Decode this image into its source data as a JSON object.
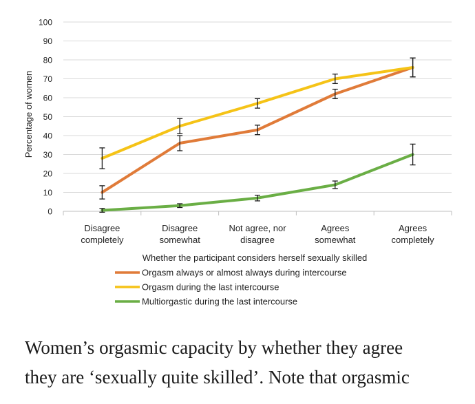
{
  "chart_data": {
    "type": "line",
    "title": "",
    "ylabel": "Percentage of women",
    "xlabel": "Whether the participant considers herself sexually skilled",
    "ylim": [
      0,
      100
    ],
    "yticks": [
      0,
      10,
      20,
      30,
      40,
      50,
      60,
      70,
      80,
      90,
      100
    ],
    "grid": true,
    "legend_position": "bottom",
    "categories": [
      [
        "Disagree",
        "completely"
      ],
      [
        "Disagree",
        "somewhat"
      ],
      [
        "Not agree, nor",
        "disagree"
      ],
      [
        "Agrees",
        "somewhat"
      ],
      [
        "Agrees",
        "completely"
      ]
    ],
    "series": [
      {
        "name": "Orgasm always or almost always during intercourse",
        "color": "#e07b39",
        "values": [
          10,
          36,
          43,
          62,
          76
        ],
        "error": [
          3.5,
          4,
          2.5,
          2.5,
          5
        ]
      },
      {
        "name": "Orgasm during the last intercourse",
        "color": "#f5c317",
        "values": [
          28,
          45,
          57,
          70,
          76
        ],
        "error": [
          5.5,
          4,
          2.5,
          2.5,
          5
        ]
      },
      {
        "name": "Multiorgastic during the last intercourse",
        "color": "#6aae45",
        "values": [
          0.5,
          3,
          7,
          14,
          30
        ],
        "error": [
          1,
          1,
          1.5,
          2,
          5.5
        ]
      }
    ]
  },
  "caption": {
    "line1": "Women’s orgasmic capacity by whether they agree",
    "line2": "they are ‘sexually quite skilled’. Note that orgasmic"
  }
}
